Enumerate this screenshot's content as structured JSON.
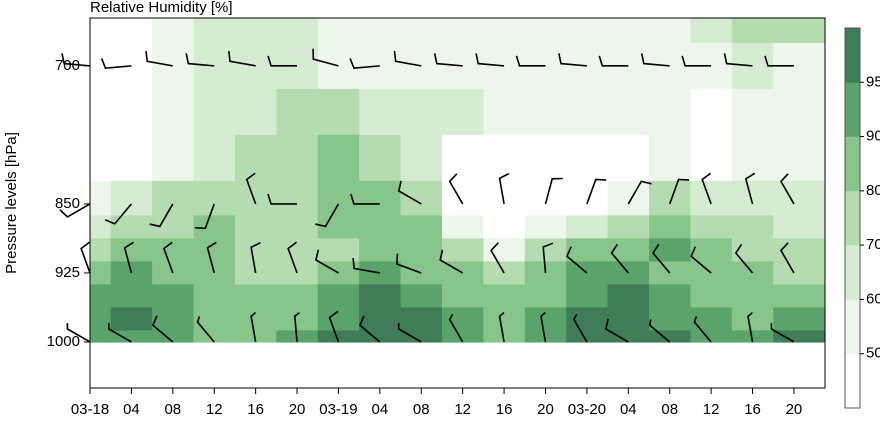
{
  "chart_data": {
    "type": "contour",
    "title": "Relative Humidity [%]",
    "ylabel": "Pressure levels [hPa]",
    "x": [
      0,
      4,
      8,
      12,
      16,
      20,
      24,
      28,
      32,
      36,
      40,
      44,
      48,
      52,
      56,
      60,
      64,
      68
    ],
    "levels": [
      650,
      700,
      750,
      800,
      850,
      875,
      900,
      925,
      950,
      975,
      1000
    ],
    "values": [
      [
        42,
        45,
        52,
        62,
        64,
        62,
        58,
        56,
        55,
        56,
        58,
        56,
        55,
        54,
        56,
        60,
        74,
        72
      ],
      [
        45,
        48,
        55,
        60,
        62,
        60,
        58,
        56,
        57,
        58,
        57,
        55,
        56,
        57,
        56,
        58,
        60,
        58
      ],
      [
        42,
        46,
        55,
        62,
        66,
        70,
        70,
        62,
        60,
        62,
        58,
        56,
        55,
        56,
        55,
        48,
        52,
        55
      ],
      [
        40,
        45,
        58,
        68,
        74,
        78,
        84,
        76,
        66,
        48,
        42,
        42,
        44,
        46,
        55,
        48,
        52,
        55
      ],
      [
        52,
        62,
        72,
        76,
        72,
        70,
        82,
        80,
        70,
        48,
        42,
        44,
        46,
        58,
        70,
        68,
        62,
        60
      ],
      [
        68,
        72,
        78,
        80,
        74,
        72,
        80,
        86,
        80,
        58,
        44,
        55,
        68,
        78,
        80,
        76,
        72,
        68
      ],
      [
        75,
        80,
        82,
        80,
        76,
        74,
        78,
        88,
        86,
        72,
        58,
        74,
        82,
        88,
        90,
        82,
        76,
        74
      ],
      [
        86,
        90,
        86,
        82,
        78,
        76,
        80,
        92,
        88,
        80,
        74,
        84,
        90,
        92,
        88,
        84,
        80,
        78
      ],
      [
        90,
        93,
        92,
        86,
        84,
        86,
        90,
        95,
        92,
        86,
        80,
        88,
        93,
        95,
        92,
        88,
        84,
        88
      ],
      [
        92,
        96,
        93,
        88,
        85,
        88,
        92,
        97,
        96,
        90,
        85,
        92,
        97,
        97,
        94,
        90,
        88,
        94
      ],
      [
        92,
        94,
        90,
        86,
        88,
        92,
        96,
        97,
        96,
        92,
        88,
        93,
        97,
        97,
        95,
        92,
        90,
        96
      ]
    ],
    "contour_levels": [
      50,
      60,
      70,
      80,
      90,
      95
    ],
    "colors": [
      "#ffffff",
      "#edf6ea",
      "#d6ecd2",
      "#b4dcb0",
      "#88c58a",
      "#5aa36a",
      "#3f7d58"
    ],
    "barbs": {
      "levels": [
        700,
        850,
        925,
        1000
      ],
      "direction": [
        [
          275,
          265,
          280,
          275,
          280,
          270,
          285,
          265,
          280,
          275,
          275,
          270,
          275,
          270,
          275,
          270,
          275,
          270
        ],
        [
          240,
          220,
          210,
          200,
          340,
          270,
          210,
          270,
          300,
          330,
          350,
          15,
          20,
          30,
          20,
          340,
          345,
          330
        ],
        [
          340,
          345,
          340,
          345,
          350,
          340,
          300,
          280,
          290,
          300,
          330,
          355,
          310,
          320,
          320,
          310,
          320,
          330
        ],
        [
          300,
          300,
          310,
          320,
          350,
          355,
          340,
          310,
          300,
          330,
          350,
          350,
          330,
          300,
          310,
          320,
          350,
          300
        ]
      ],
      "speed": [
        [
          10,
          10,
          10,
          10,
          10,
          10,
          10,
          10,
          10,
          10,
          10,
          10,
          10,
          10,
          10,
          10,
          10,
          10
        ],
        [
          10,
          10,
          10,
          10,
          10,
          10,
          10,
          10,
          10,
          10,
          10,
          10,
          10,
          10,
          10,
          10,
          10,
          10
        ],
        [
          10,
          10,
          10,
          10,
          10,
          10,
          10,
          10,
          10,
          10,
          10,
          10,
          10,
          10,
          10,
          10,
          10,
          10
        ],
        [
          5,
          5,
          10,
          5,
          5,
          5,
          10,
          10,
          5,
          5,
          5,
          5,
          5,
          10,
          5,
          5,
          5,
          5
        ]
      ]
    },
    "xlim": [
      0,
      71
    ],
    "ylim": [
      1050,
      648
    ],
    "xticks": [
      {
        "value": 0,
        "label": "03-18"
      },
      {
        "value": 4,
        "label": "04"
      },
      {
        "value": 8,
        "label": "08"
      },
      12,
      16,
      20,
      {
        "value": 24,
        "label": "03-19"
      },
      {
        "value": 28,
        "label": "04"
      },
      {
        "value": 32,
        "label": "08"
      },
      {
        "value": 36,
        "label": "12"
      },
      {
        "value": 40,
        "label": "16"
      },
      {
        "value": 44,
        "label": "20"
      },
      {
        "value": 48,
        "label": "03-20"
      },
      {
        "value": 52,
        "label": "04"
      },
      {
        "value": 56,
        "label": "08"
      },
      {
        "value": 60,
        "label": "12"
      },
      {
        "value": 64,
        "label": "16"
      },
      {
        "value": 68,
        "label": "20"
      }
    ],
    "yticks": [
      700,
      850,
      925,
      1000
    ]
  }
}
